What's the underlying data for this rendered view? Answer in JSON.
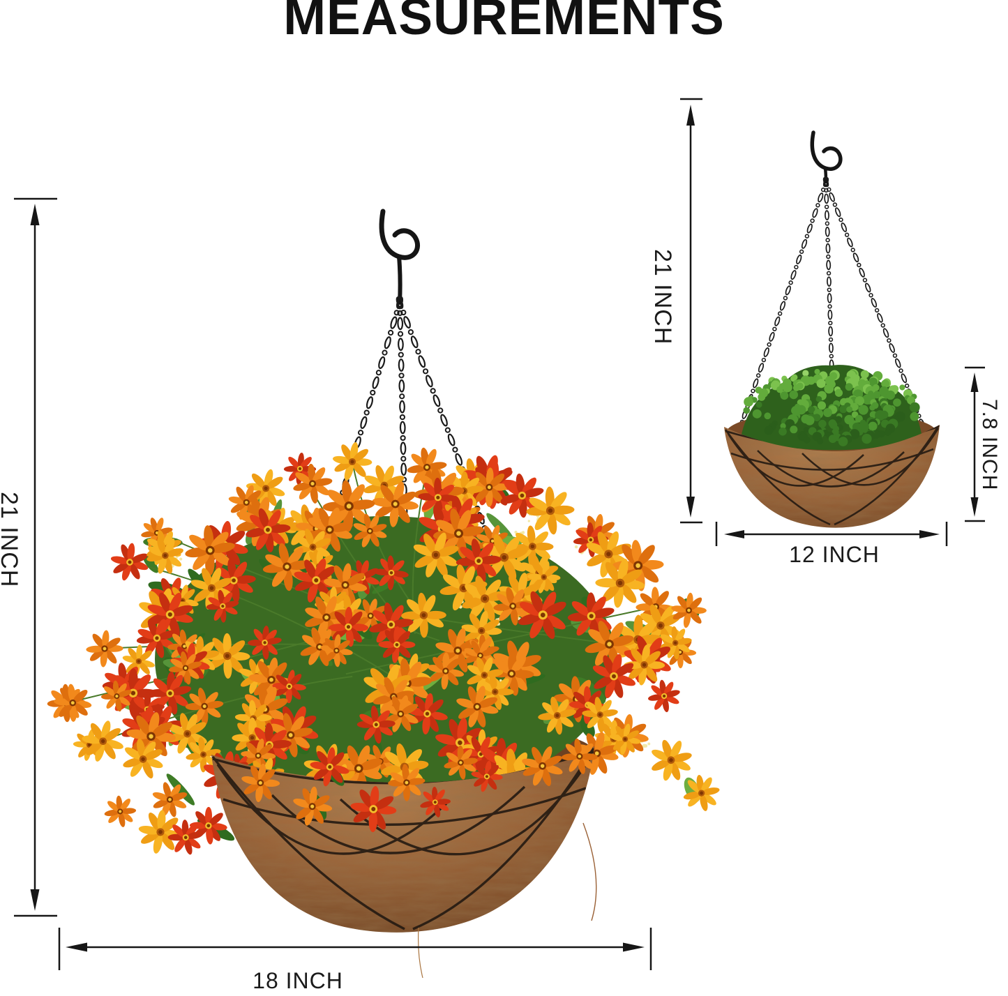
{
  "title": "MEASUREMENTS",
  "large_basket": {
    "height_label": "21 INCH",
    "diameter_label": "18 INCH"
  },
  "small_basket": {
    "height_label": "21 INCH",
    "depth_label": "7.8 INCH",
    "diameter_label": "12 INCH"
  },
  "colors": {
    "background": "#ffffff",
    "text": "#1a1a1a",
    "dimension_lines": "#161616",
    "flower_orange": "#F2891C",
    "flower_red": "#E23D17",
    "flower_yellow": "#F8B322",
    "foliage_green": "#3E7C26",
    "plant_green": "#4E9630",
    "coco_fiber_brown": "#9A6136",
    "coco_fiber_dark": "#6E4122",
    "basket_wire": "#241A12",
    "chain_black": "#1B1B1B"
  }
}
